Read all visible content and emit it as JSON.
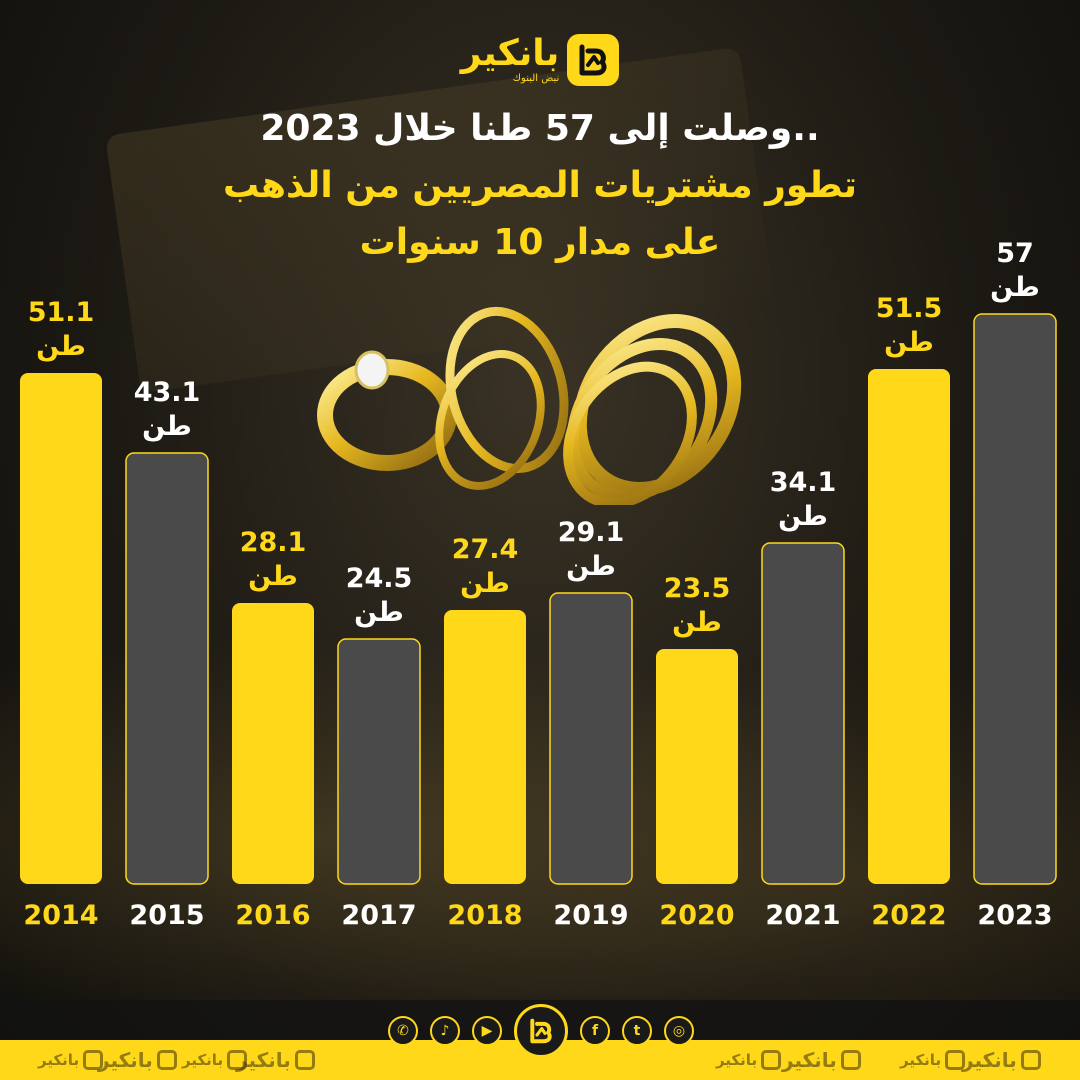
{
  "brand": {
    "name": "بانكير",
    "tagline": "نبض البنوك"
  },
  "headline": {
    "line1": "وصلت إلى 57 طنا خلال 2023..",
    "line2": "تطور مشتريات المصريين من الذهب",
    "line3": "على مدار 10 سنوات"
  },
  "colors": {
    "accent": "#ffd81a",
    "bar_dark": "#4a4a4a",
    "background": "#1d1a14"
  },
  "footer": {
    "social_icons": [
      "whatsapp-icon",
      "tiktok-icon",
      "youtube-icon",
      "facebook-icon",
      "twitter-icon",
      "instagram-icon"
    ]
  },
  "chart_data": {
    "type": "bar",
    "categories": [
      "2014",
      "2015",
      "2016",
      "2017",
      "2018",
      "2019",
      "2020",
      "2021",
      "2022",
      "2023"
    ],
    "values": [
      51.1,
      43.1,
      28.1,
      24.5,
      27.4,
      29.1,
      23.5,
      34.1,
      51.5,
      57
    ],
    "value_labels": [
      "51.1",
      "43.1",
      "28.1",
      "24.5",
      "27.4",
      "29.1",
      "23.5",
      "34.1",
      "51.5",
      "57"
    ],
    "unit": "طن",
    "bar_colors": [
      "#ffd81a",
      "#4a4a4a",
      "#ffd81a",
      "#4a4a4a",
      "#ffd81a",
      "#4a4a4a",
      "#ffd81a",
      "#4a4a4a",
      "#ffd81a",
      "#4a4a4a"
    ],
    "label_colors": [
      "#ffd81a",
      "#ffffff",
      "#ffd81a",
      "#ffffff",
      "#ffd81a",
      "#ffffff",
      "#ffd81a",
      "#ffffff",
      "#ffd81a",
      "#ffffff"
    ],
    "ylim": [
      0,
      57
    ],
    "grid": false,
    "title": "",
    "xlabel": "",
    "ylabel": ""
  }
}
